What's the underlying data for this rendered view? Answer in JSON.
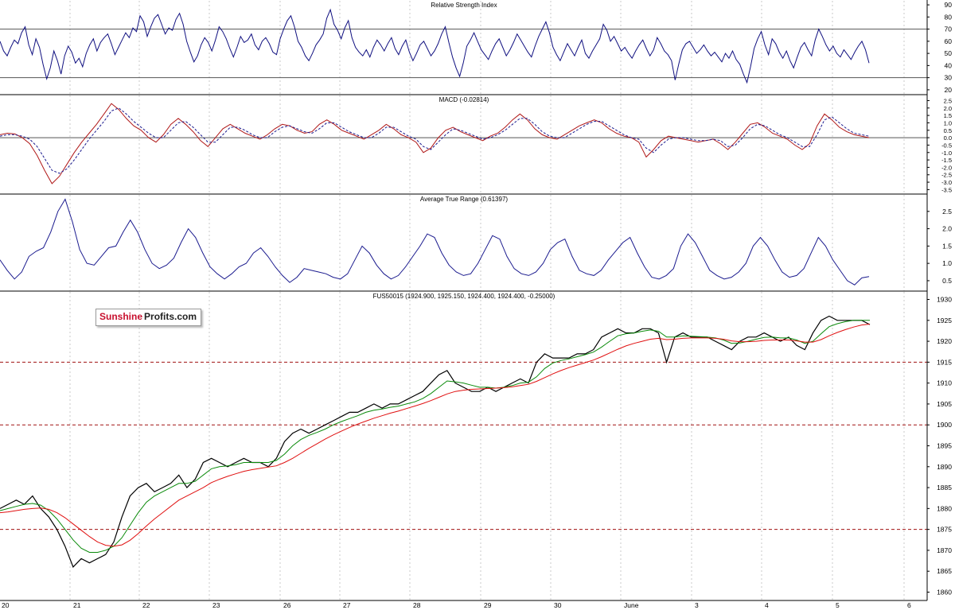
{
  "chart_data": [
    {
      "type": "line",
      "title": "Relative Strength Index",
      "yticks": [
        90,
        80,
        70,
        60,
        50,
        40,
        30,
        20
      ],
      "ylim": [
        16,
        94
      ],
      "reference_lines": [
        70,
        30
      ],
      "grid": false,
      "series": [
        {
          "color": "#101080",
          "values": [
            60,
            52,
            48,
            55,
            61,
            58,
            67,
            72,
            57,
            49,
            62,
            55,
            41,
            29,
            38,
            52,
            44,
            33,
            48,
            56,
            51,
            42,
            46,
            39,
            50,
            57,
            62,
            52,
            59,
            63,
            66,
            58,
            49,
            55,
            61,
            67,
            63,
            71,
            68,
            81,
            76,
            64,
            72,
            79,
            82,
            74,
            66,
            71,
            69,
            78,
            83,
            74,
            60,
            51,
            43,
            48,
            57,
            63,
            59,
            52,
            61,
            72,
            68,
            62,
            54,
            47,
            55,
            64,
            59,
            61,
            66,
            57,
            53,
            60,
            63,
            58,
            51,
            49,
            62,
            70,
            77,
            81,
            72,
            60,
            55,
            48,
            44,
            50,
            57,
            61,
            66,
            79,
            86,
            74,
            69,
            62,
            71,
            77,
            63,
            55,
            51,
            48,
            53,
            47,
            55,
            61,
            57,
            52,
            58,
            63,
            54,
            49,
            56,
            61,
            51,
            44,
            50,
            57,
            60,
            54,
            48,
            52,
            58,
            66,
            72,
            59,
            47,
            38,
            31,
            42,
            56,
            61,
            67,
            60,
            53,
            49,
            45,
            52,
            58,
            62,
            55,
            48,
            53,
            59,
            66,
            61,
            56,
            51,
            47,
            56,
            64,
            70,
            76,
            67,
            55,
            49,
            44,
            51,
            58,
            53,
            48,
            55,
            61,
            50,
            46,
            52,
            57,
            62,
            74,
            69,
            60,
            64,
            58,
            52,
            55,
            50,
            46,
            52,
            57,
            61,
            54,
            48,
            53,
            63,
            58,
            52,
            49,
            44,
            28,
            41,
            53,
            58,
            60,
            55,
            50,
            53,
            57,
            52,
            48,
            51,
            47,
            43,
            50,
            46,
            52,
            45,
            41,
            33,
            26,
            39,
            54,
            62,
            68,
            57,
            49,
            62,
            58,
            51,
            46,
            52,
            44,
            38,
            47,
            55,
            59,
            53,
            48,
            61,
            70,
            64,
            57,
            52,
            56,
            50,
            47,
            53,
            49,
            45,
            51,
            56,
            60,
            53,
            42
          ]
        }
      ]
    },
    {
      "type": "line",
      "title": "MACD (-0.02814)",
      "yticks": [
        2.5,
        2.0,
        1.5,
        1.0,
        0.5,
        0.0,
        -0.5,
        -1.0,
        -1.5,
        -2.0,
        -2.5,
        -3.0,
        -3.5
      ],
      "ylim": [
        -3.8,
        2.9
      ],
      "reference_lines": [
        0
      ],
      "grid": false,
      "series": [
        {
          "color": "#b01818",
          "values": [
            0.2,
            0.3,
            0.25,
            0.0,
            -0.4,
            -1.2,
            -2.2,
            -3.1,
            -2.6,
            -1.8,
            -1.0,
            -0.3,
            0.3,
            0.9,
            1.6,
            2.3,
            1.9,
            1.3,
            0.8,
            0.5,
            0.0,
            -0.3,
            0.2,
            0.9,
            1.3,
            0.9,
            0.4,
            -0.2,
            -0.6,
            0.0,
            0.6,
            0.9,
            0.6,
            0.3,
            0.1,
            -0.1,
            0.2,
            0.6,
            0.9,
            0.8,
            0.5,
            0.3,
            0.4,
            0.9,
            1.2,
            0.9,
            0.5,
            0.3,
            0.1,
            -0.1,
            0.2,
            0.5,
            0.9,
            0.6,
            0.2,
            0.0,
            -0.3,
            -1.0,
            -0.7,
            0.0,
            0.5,
            0.7,
            0.4,
            0.2,
            0.0,
            -0.2,
            0.1,
            0.3,
            0.7,
            1.2,
            1.6,
            1.2,
            0.6,
            0.2,
            0.0,
            -0.1,
            0.2,
            0.5,
            0.8,
            1.0,
            1.2,
            1.0,
            0.6,
            0.3,
            0.1,
            0.0,
            -0.3,
            -1.3,
            -0.8,
            -0.2,
            0.1,
            0.0,
            -0.1,
            -0.2,
            -0.3,
            -0.2,
            -0.1,
            -0.4,
            -0.8,
            -0.3,
            0.3,
            0.9,
            1.0,
            0.7,
            0.3,
            0.1,
            -0.1,
            -0.5,
            -0.8,
            -0.4,
            0.8,
            1.6,
            1.2,
            0.7,
            0.4,
            0.2,
            0.1,
            0.0
          ]
        },
        {
          "color": "#1a1a8e",
          "dashed": true,
          "values": [
            0.1,
            0.2,
            0.2,
            0.1,
            -0.1,
            -0.6,
            -1.4,
            -2.2,
            -2.4,
            -2.1,
            -1.5,
            -0.8,
            -0.1,
            0.5,
            1.1,
            1.8,
            2.0,
            1.6,
            1.1,
            0.7,
            0.3,
            0.0,
            0.0,
            0.5,
            1.0,
            1.1,
            0.7,
            0.2,
            -0.3,
            -0.3,
            0.2,
            0.7,
            0.7,
            0.5,
            0.2,
            0.0,
            0.0,
            0.4,
            0.7,
            0.8,
            0.6,
            0.4,
            0.3,
            0.6,
            1.0,
            1.0,
            0.7,
            0.4,
            0.2,
            0.0,
            0.0,
            0.3,
            0.7,
            0.7,
            0.4,
            0.1,
            -0.1,
            -0.6,
            -0.8,
            -0.3,
            0.2,
            0.6,
            0.5,
            0.3,
            0.1,
            -0.1,
            0.0,
            0.2,
            0.5,
            0.9,
            1.3,
            1.3,
            0.9,
            0.4,
            0.1,
            0.0,
            0.0,
            0.3,
            0.6,
            0.9,
            1.1,
            1.1,
            0.8,
            0.5,
            0.2,
            0.0,
            -0.1,
            -0.7,
            -1.0,
            -0.5,
            -0.1,
            0.0,
            0.0,
            -0.1,
            -0.2,
            -0.2,
            -0.1,
            -0.2,
            -0.6,
            -0.5,
            0.0,
            0.6,
            0.9,
            0.8,
            0.5,
            0.2,
            0.0,
            -0.3,
            -0.6,
            -0.6,
            0.2,
            1.2,
            1.4,
            1.0,
            0.6,
            0.3,
            0.2,
            0.1
          ]
        }
      ]
    },
    {
      "type": "line",
      "title": "Average True Range (0.61397)",
      "yticks": [
        2.5,
        2.0,
        1.5,
        1.0,
        0.5
      ],
      "ylim": [
        0.2,
        3.0
      ],
      "grid": false,
      "series": [
        {
          "color": "#1a1a8e",
          "values": [
            1.1,
            0.8,
            0.55,
            0.75,
            1.2,
            1.35,
            1.45,
            1.9,
            2.5,
            2.85,
            2.2,
            1.4,
            1.0,
            0.95,
            1.2,
            1.45,
            1.5,
            1.9,
            2.25,
            1.9,
            1.4,
            1.0,
            0.85,
            0.95,
            1.15,
            1.6,
            2.0,
            1.75,
            1.3,
            0.9,
            0.7,
            0.55,
            0.7,
            0.9,
            1.0,
            1.3,
            1.45,
            1.2,
            0.9,
            0.65,
            0.45,
            0.6,
            0.85,
            0.8,
            0.75,
            0.7,
            0.6,
            0.55,
            0.7,
            1.1,
            1.5,
            1.3,
            0.95,
            0.7,
            0.55,
            0.65,
            0.9,
            1.2,
            1.5,
            1.85,
            1.75,
            1.3,
            0.95,
            0.75,
            0.65,
            0.7,
            1.0,
            1.4,
            1.8,
            1.7,
            1.2,
            0.85,
            0.7,
            0.65,
            0.75,
            1.0,
            1.4,
            1.6,
            1.7,
            1.2,
            0.8,
            0.7,
            0.65,
            0.8,
            1.1,
            1.35,
            1.6,
            1.75,
            1.3,
            0.9,
            0.6,
            0.55,
            0.65,
            0.85,
            1.5,
            1.85,
            1.6,
            1.2,
            0.8,
            0.65,
            0.55,
            0.6,
            0.75,
            1.0,
            1.5,
            1.75,
            1.5,
            1.1,
            0.75,
            0.6,
            0.65,
            0.85,
            1.3,
            1.75,
            1.5,
            1.1,
            0.8,
            0.5,
            0.38,
            0.58,
            0.62
          ]
        }
      ]
    },
    {
      "type": "line",
      "title": "FUS50015 (1924.900, 1925.150, 1924.400, 1924.400, -0.25000)",
      "yticks": [
        1930,
        1925,
        1920,
        1915,
        1910,
        1905,
        1900,
        1895,
        1890,
        1885,
        1880,
        1875,
        1870,
        1865,
        1860
      ],
      "ylim": [
        1858,
        1932
      ],
      "reference_lines": [
        1915,
        1900,
        1875
      ],
      "xticks": [
        "20",
        "21",
        "22",
        "23",
        "26",
        "27",
        "28",
        "29",
        "30",
        "June",
        "3",
        "4",
        "5",
        "6"
      ],
      "grid": false,
      "series": [
        {
          "color": "#000000",
          "values": [
            1880,
            1881,
            1882,
            1881,
            1883,
            1880,
            1878,
            1875,
            1871,
            1866,
            1868,
            1867,
            1868,
            1869,
            1872,
            1878,
            1883,
            1885,
            1886,
            1884,
            1885,
            1886,
            1888,
            1885,
            1887,
            1891,
            1892,
            1891,
            1890,
            1891,
            1892,
            1891,
            1891,
            1890,
            1892,
            1896,
            1898,
            1899,
            1898,
            1899,
            1900,
            1901,
            1902,
            1903,
            1903,
            1904,
            1905,
            1904,
            1905,
            1905,
            1906,
            1907,
            1908,
            1910,
            1912,
            1913,
            1910,
            1909,
            1908,
            1908,
            1909,
            1908,
            1909,
            1910,
            1911,
            1910,
            1915,
            1917,
            1916,
            1916,
            1916,
            1917,
            1917,
            1918,
            1921,
            1922,
            1923,
            1922,
            1922,
            1923,
            1923,
            1922,
            1915,
            1921,
            1922,
            1921,
            1921,
            1921,
            1920,
            1919,
            1918,
            1920,
            1921,
            1921,
            1922,
            1921,
            1920,
            1921,
            1919,
            1918,
            1922,
            1925,
            1926,
            1925,
            1925,
            1925,
            1925,
            1924
          ]
        },
        {
          "color": "#0a8a0a",
          "values": [
            1879.5,
            1880,
            1880.5,
            1881,
            1881.2,
            1880.8,
            1879.5,
            1877.5,
            1875,
            1872.5,
            1870.5,
            1869.5,
            1869.5,
            1870,
            1871,
            1873,
            1876,
            1879,
            1881.5,
            1883,
            1884,
            1885,
            1886,
            1886,
            1886.5,
            1888,
            1889.5,
            1890,
            1890.2,
            1890.5,
            1891,
            1891,
            1891,
            1891,
            1891.5,
            1893,
            1895,
            1896.5,
            1897.5,
            1898.2,
            1899,
            1900,
            1900.8,
            1901.5,
            1902.2,
            1903,
            1903.5,
            1903.8,
            1904.2,
            1904.5,
            1905,
            1905.5,
            1906.3,
            1907.5,
            1909,
            1910.5,
            1910.3,
            1910,
            1909.5,
            1909,
            1909,
            1908.8,
            1909,
            1909.4,
            1910,
            1910.2,
            1911.5,
            1913.5,
            1914.8,
            1915.4,
            1915.8,
            1916.3,
            1916.8,
            1917.4,
            1918.6,
            1920,
            1921.3,
            1921.8,
            1922,
            1922.4,
            1922.7,
            1922.4,
            1921,
            1921,
            1921.3,
            1921.2,
            1921.1,
            1921,
            1920.8,
            1920.3,
            1919.5,
            1919.6,
            1920,
            1920.5,
            1920.9,
            1921,
            1920.8,
            1920.8,
            1920.3,
            1919.5,
            1920,
            1921.8,
            1923.5,
            1924.2,
            1924.7,
            1925,
            1925,
            1925
          ]
        },
        {
          "color": "#e01010",
          "values": [
            1879,
            1879.2,
            1879.5,
            1879.8,
            1880,
            1880.1,
            1879.8,
            1879,
            1877.8,
            1876.3,
            1874.8,
            1873.3,
            1872,
            1871.2,
            1871,
            1871.3,
            1872.4,
            1874,
            1875.8,
            1877.5,
            1879,
            1880.5,
            1882,
            1883,
            1884,
            1885,
            1886.2,
            1887,
            1887.7,
            1888.3,
            1888.9,
            1889.3,
            1889.6,
            1889.9,
            1890.2,
            1891,
            1892,
            1893.2,
            1894.4,
            1895.5,
            1896.6,
            1897.6,
            1898.5,
            1899.4,
            1900.2,
            1900.9,
            1901.6,
            1902.2,
            1902.8,
            1903.3,
            1903.9,
            1904.5,
            1905.1,
            1905.8,
            1906.6,
            1907.4,
            1908,
            1908.3,
            1908.5,
            1908.6,
            1908.7,
            1908.8,
            1908.9,
            1909.1,
            1909.4,
            1909.7,
            1910.4,
            1911.3,
            1912.2,
            1913,
            1913.7,
            1914.3,
            1914.9,
            1915.5,
            1916.3,
            1917.2,
            1918.1,
            1918.9,
            1919.5,
            1920,
            1920.5,
            1920.7,
            1920.4,
            1920.5,
            1920.7,
            1920.8,
            1920.8,
            1920.8,
            1920.7,
            1920.5,
            1920.1,
            1919.9,
            1919.9,
            1920,
            1920.2,
            1920.3,
            1920.3,
            1920.3,
            1920.1,
            1919.8,
            1919.8,
            1920.4,
            1921.3,
            1922.1,
            1922.8,
            1923.4,
            1923.9,
            1924.1
          ]
        }
      ]
    }
  ],
  "logo": {
    "part1": "Sunshine",
    "part2": "Profits.com"
  }
}
